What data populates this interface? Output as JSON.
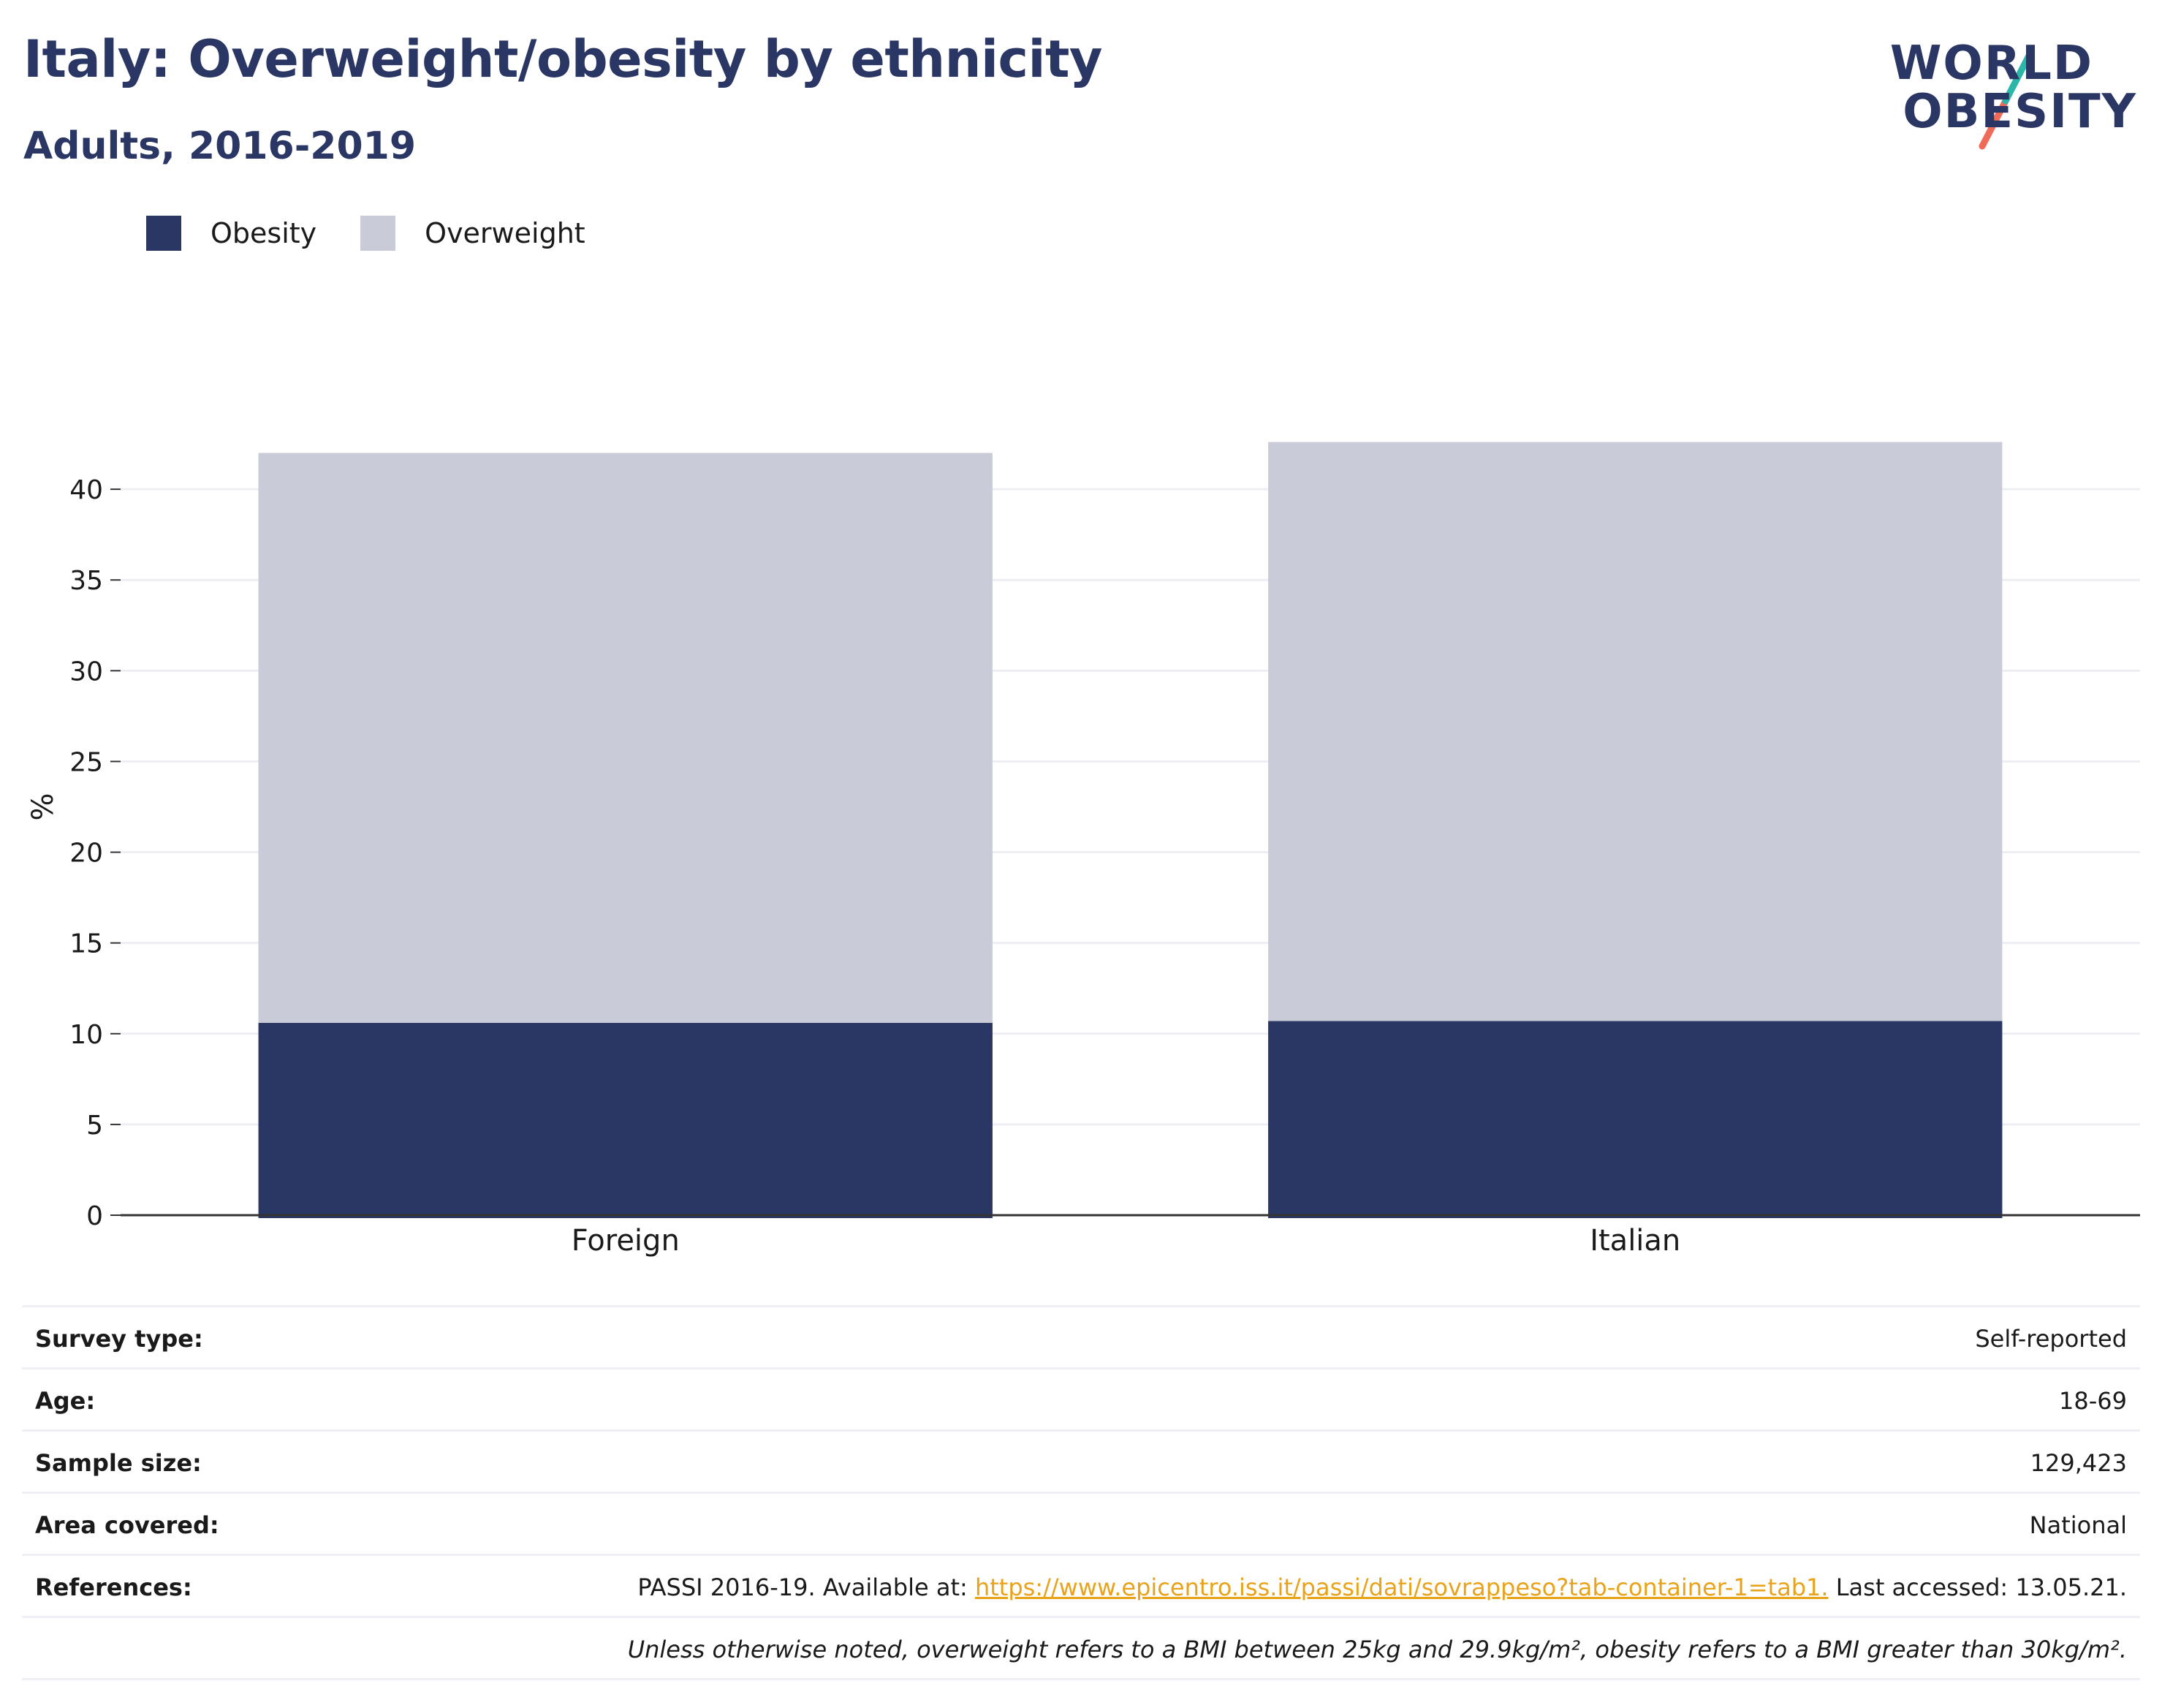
{
  "title": "Italy: Overweight/obesity by ethnicity",
  "subtitle": "Adults, 2016-2019",
  "logo": {
    "line1": "WORLD",
    "line2": "OBESITY"
  },
  "colors": {
    "obesity": "#2a3664",
    "overweight": "#c9ccd8",
    "link": "#e9a31b",
    "accent_teal": "#2ab7a9",
    "accent_coral": "#ef6b57"
  },
  "chart_data": {
    "type": "bar",
    "stacked": true,
    "categories": [
      "Foreign",
      "Italian"
    ],
    "series": [
      {
        "name": "Obesity",
        "values": [
          10.6,
          10.7
        ]
      },
      {
        "name": "Overweight",
        "values": [
          31.4,
          31.9
        ]
      }
    ],
    "ylabel": "%",
    "xlabel": "",
    "ylim": [
      0,
      45
    ],
    "yticks": [
      0,
      5,
      10,
      15,
      20,
      25,
      30,
      35,
      40
    ],
    "grid": true,
    "legend_position": "top-left"
  },
  "info": {
    "survey_type_label": "Survey type:",
    "survey_type": "Self-reported",
    "age_label": "Age:",
    "age": "18-69",
    "sample_size_label": "Sample size:",
    "sample_size": "129,423",
    "area_label": "Area covered:",
    "area": "National",
    "references_label": "References:",
    "references_prefix": "PASSI 2016-19. Available at: ",
    "references_link": "https://www.epicentro.iss.it/passi/dati/sovrappeso?tab-container-1=tab1.",
    "references_suffix": " Last accessed: 13.05.21.",
    "note": "Unless otherwise noted, overweight refers to a BMI between 25kg and 29.9kg/m², obesity refers to a BMI greater than 30kg/m²."
  }
}
